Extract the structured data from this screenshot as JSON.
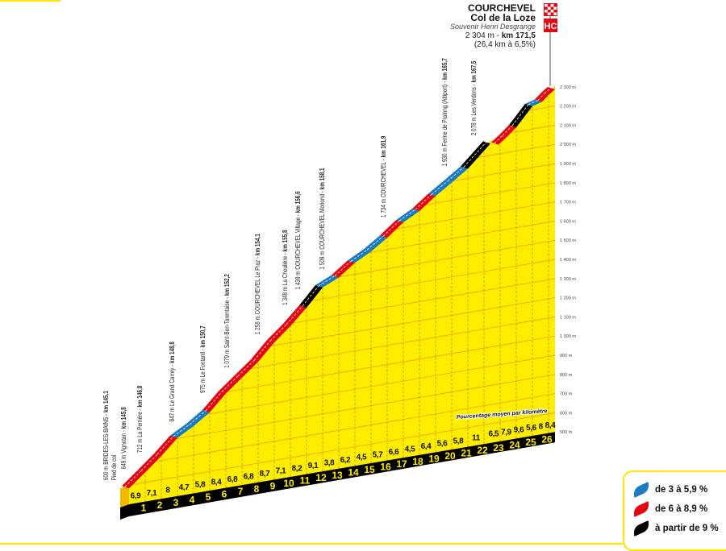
{
  "colors": {
    "blue": "#1b7ac4",
    "red": "#e30613",
    "black": "#000000",
    "yellow": "#ffed00",
    "grid": "#e8a000",
    "km_text": "#ffed00"
  },
  "summit": {
    "name": "COURCHEVEL",
    "col": "Col de la Loze",
    "souvenir": "Souvenir Henri Desgrange",
    "altitude": "2 304 m - ",
    "km": "km 171,5",
    "stats": "(26,4 km à 6,5%)",
    "category": "HC"
  },
  "caption": "Pourcentage moyen par kilomètre",
  "legend": [
    {
      "label": "de 3 à 5,9 %",
      "color": "blue"
    },
    {
      "label": "de 6 à 8,9 %",
      "color": "red"
    },
    {
      "label": "à partir de 9 %",
      "color": "black"
    }
  ],
  "chart_data": {
    "type": "area",
    "xlabel": "",
    "ylabel": "",
    "x_unit": "km",
    "y_unit": "m",
    "ylim": [
      500,
      2300
    ],
    "y_ticks": [
      "500 m",
      "600 m",
      "700 m",
      "800 m",
      "900 m",
      "1 000 m",
      "1 100 m",
      "1 200 m",
      "1 300 m",
      "1 400 m",
      "1 500 m",
      "1 600 m",
      "1 700 m",
      "1 800 m",
      "1 900 m",
      "2 000 m",
      "2 100 m",
      "2 200 m",
      "2 300 m"
    ],
    "km_ticks": [
      "1",
      "2",
      "3",
      "4",
      "5",
      "6",
      "7",
      "8",
      "9",
      "10",
      "11",
      "12",
      "13",
      "14",
      "15",
      "16",
      "17",
      "18",
      "19",
      "20",
      "21",
      "22",
      "23",
      "24",
      "25",
      "26"
    ],
    "profile": [
      {
        "km": 0,
        "alt": 600
      },
      {
        "km": 1,
        "alt": 669,
        "cat": "red"
      },
      {
        "km": 2,
        "alt": 740,
        "cat": "red"
      },
      {
        "km": 3,
        "alt": 820,
        "cat": "red"
      },
      {
        "km": 4,
        "alt": 867,
        "cat": "blue"
      },
      {
        "km": 5,
        "alt": 925,
        "cat": "blue"
      },
      {
        "km": 6,
        "alt": 1009,
        "cat": "red"
      },
      {
        "km": 7,
        "alt": 1077,
        "cat": "red"
      },
      {
        "km": 8,
        "alt": 1145,
        "cat": "red"
      },
      {
        "km": 9,
        "alt": 1232,
        "cat": "red"
      },
      {
        "km": 10,
        "alt": 1303,
        "cat": "red"
      },
      {
        "km": 11,
        "alt": 1385,
        "cat": "red"
      },
      {
        "km": 12,
        "alt": 1476,
        "cat": "black"
      },
      {
        "km": 13,
        "alt": 1514,
        "cat": "blue"
      },
      {
        "km": 14,
        "alt": 1576,
        "cat": "red"
      },
      {
        "km": 15,
        "alt": 1621,
        "cat": "blue"
      },
      {
        "km": 16,
        "alt": 1678,
        "cat": "blue"
      },
      {
        "km": 17,
        "alt": 1744,
        "cat": "red"
      },
      {
        "km": 18,
        "alt": 1789,
        "cat": "blue"
      },
      {
        "km": 19,
        "alt": 1853,
        "cat": "red"
      },
      {
        "km": 20,
        "alt": 1909,
        "cat": "blue"
      },
      {
        "km": 21,
        "alt": 1967,
        "cat": "blue"
      },
      {
        "km": 22.4,
        "alt": 2078,
        "cat": "black"
      },
      {
        "km": 22.9,
        "alt": 2065,
        "cat": "none"
      },
      {
        "km": 23.4,
        "alt": 2097,
        "cat": "red"
      },
      {
        "km": 24,
        "alt": 2140,
        "cat": "red"
      },
      {
        "km": 25,
        "alt": 2236,
        "cat": "black"
      },
      {
        "km": 25.6,
        "alt": 2250,
        "cat": "blue"
      },
      {
        "km": 26,
        "alt": 2280,
        "cat": "red"
      },
      {
        "km": 26.4,
        "alt": 2304,
        "cat": "red"
      }
    ],
    "gradients": [
      {
        "km": 0.5,
        "value": "6,9"
      },
      {
        "km": 1.5,
        "value": "7,1"
      },
      {
        "km": 2.5,
        "value": "8"
      },
      {
        "km": 3.5,
        "value": "4,7"
      },
      {
        "km": 4.5,
        "value": "5,8"
      },
      {
        "km": 5.5,
        "value": "8,4"
      },
      {
        "km": 6.5,
        "value": "6,8"
      },
      {
        "km": 7.5,
        "value": "6,8"
      },
      {
        "km": 8.5,
        "value": "8,7"
      },
      {
        "km": 9.5,
        "value": "7,1"
      },
      {
        "km": 10.5,
        "value": "8,2"
      },
      {
        "km": 11.5,
        "value": "9,1"
      },
      {
        "km": 12.5,
        "value": "3,8"
      },
      {
        "km": 13.5,
        "value": "6,2"
      },
      {
        "km": 14.5,
        "value": "4,5"
      },
      {
        "km": 15.5,
        "value": "5,7"
      },
      {
        "km": 16.5,
        "value": "6,6"
      },
      {
        "km": 17.5,
        "value": "4,5"
      },
      {
        "km": 18.5,
        "value": "6,4"
      },
      {
        "km": 19.5,
        "value": "5,6"
      },
      {
        "km": 20.5,
        "value": "5,8"
      },
      {
        "km": 21.6,
        "value": "11"
      },
      {
        "km": 23.1,
        "value": "6,5"
      },
      {
        "km": 23.7,
        "value": "7,9"
      },
      {
        "km": 24.5,
        "value": "9,6"
      },
      {
        "km": 25.3,
        "value": "5,6"
      },
      {
        "km": 25.8,
        "value": "8"
      },
      {
        "km": 26.2,
        "value": "8,4"
      }
    ],
    "waypoints": [
      {
        "km": 0,
        "name": "600 m BRIDES-LES-BAINS - ",
        "kmlabel": "km 145,1",
        "sub": "Pied de col"
      },
      {
        "km": 0.7,
        "name": "649 m Vignotan - ",
        "kmlabel": "km 145,8"
      },
      {
        "km": 1.7,
        "name": "712 m La Perrière - ",
        "kmlabel": "km 146,8"
      },
      {
        "km": 3.7,
        "name": "847 m Le Grand Carrey - ",
        "kmlabel": "km 148,8"
      },
      {
        "km": 5.6,
        "name": "975 m Le Fontanil - ",
        "kmlabel": "km 150,7"
      },
      {
        "km": 7.1,
        "name": "1 079 m Saint-Bon-Tarentaise - ",
        "kmlabel": "km 152,2"
      },
      {
        "km": 9,
        "name": "1 258 m COURCHEVEL Le Praz - ",
        "kmlabel": "km 154,1"
      },
      {
        "km": 10.7,
        "name": "1 348 m La Choulière - ",
        "kmlabel": "km 155,8"
      },
      {
        "km": 11.5,
        "name": "1 439 m COURCHEVEL Village - ",
        "kmlabel": "km 156,6"
      },
      {
        "km": 13,
        "name": "1 509 m COURCHEVEL Moriond - ",
        "kmlabel": "km 158,1"
      },
      {
        "km": 16.8,
        "name": "1 734 m COURCHEVEL - ",
        "kmlabel": "km 161,9"
      },
      {
        "km": 20.6,
        "name": "1 930 m Ferme de Pralong (Altiport) - ",
        "kmlabel": "km 165,7"
      },
      {
        "km": 22.4,
        "name": "2 078 m Les Verdons - ",
        "kmlabel": "km 167,5"
      }
    ]
  }
}
